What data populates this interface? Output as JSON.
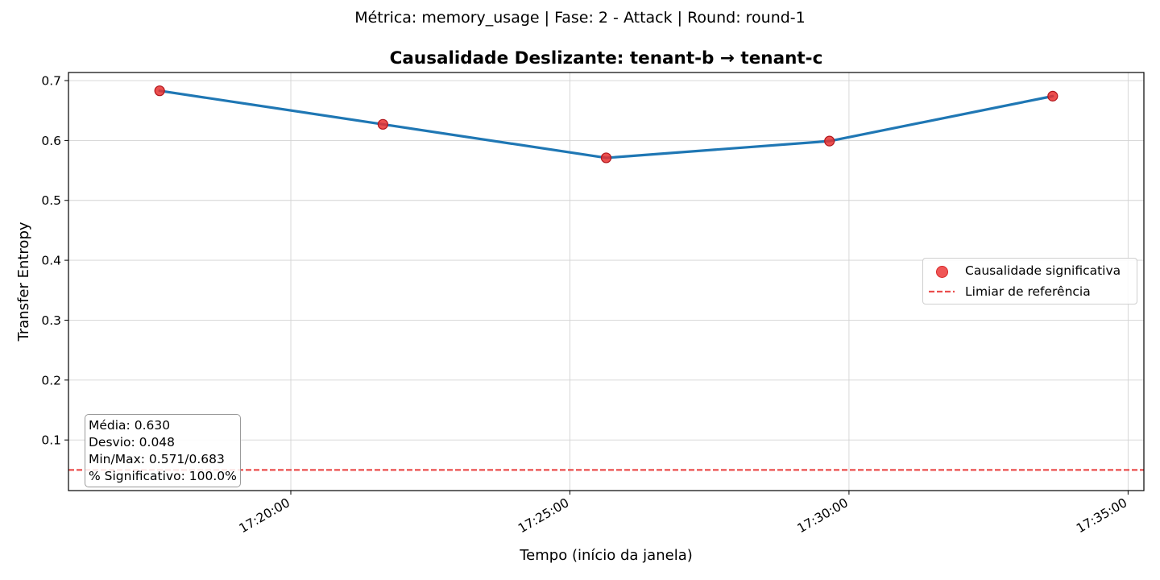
{
  "suptitle": "Métrica: memory_usage | Fase: 2 - Attack | Round: round-1",
  "chart_data": {
    "type": "line",
    "title": "Causalidade Deslizante: tenant-b → tenant-c",
    "xlabel": "Tempo (início da janela)",
    "ylabel": "Transfer Entropy",
    "x": [
      "17:17:39",
      "17:21:39",
      "17:25:39",
      "17:29:39",
      "17:33:39"
    ],
    "series": [
      {
        "values": [
          0.683,
          0.627,
          0.571,
          0.599,
          0.674
        ],
        "color": "#1f77b4"
      }
    ],
    "significant_points": [
      0.683,
      0.627,
      0.571,
      0.599,
      0.674
    ],
    "significant_color": "#e8302f",
    "threshold": 0.05,
    "threshold_color": "#e8302f",
    "x_ticks": [
      "17:20:00",
      "17:25:00",
      "17:30:00",
      "17:35:00"
    ],
    "y_ticks": [
      "0.1",
      "0.2",
      "0.3",
      "0.4",
      "0.5",
      "0.6",
      "0.7"
    ],
    "x_range": [
      "17:16:01",
      "17:35:17"
    ],
    "ylim": [
      0.0155,
      0.7135
    ],
    "grid": true,
    "legend_position": "center-right",
    "legend": [
      {
        "label": "Causalidade significativa",
        "kind": "marker"
      },
      {
        "label": "Limiar de referência",
        "kind": "dashed-line"
      }
    ]
  },
  "stats": {
    "media": "Média: 0.630",
    "desvio": "Desvio: 0.048",
    "minmax": "Min/Max: 0.571/0.683",
    "significativo": "% Significativo: 100.0%"
  }
}
